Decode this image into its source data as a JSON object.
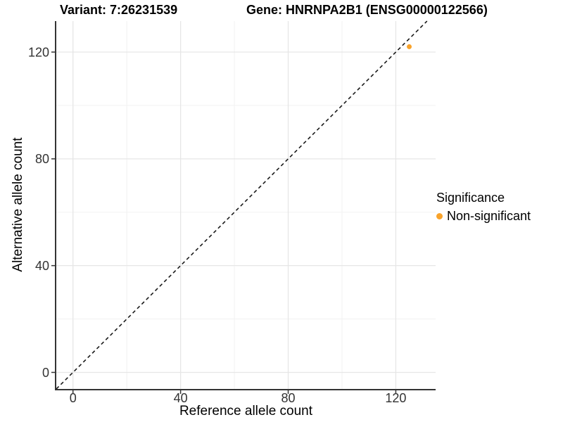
{
  "titles": {
    "variant": "Variant: 7:26231539",
    "gene": "Gene: HNRNPA2B1 (ENSG00000122566)"
  },
  "chart_data": {
    "type": "scatter",
    "xlabel": "Reference allele count",
    "ylabel": "Alternative allele count",
    "x_ticks": [
      0,
      40,
      80,
      120
    ],
    "y_ticks": [
      0,
      40,
      80,
      120
    ],
    "x_minor_ticks": [
      20,
      60,
      100
    ],
    "y_minor_ticks": [
      20,
      60,
      100
    ],
    "xlim": [
      -6.2,
      134.8
    ],
    "ylim": [
      -6.2,
      131.6
    ],
    "grid": "on",
    "identity_line": {
      "style": "dashed",
      "from": -6.2,
      "to": 131.6
    },
    "series": [
      {
        "name": "Non-significant",
        "color": "#F9A32B",
        "points": [
          {
            "x": 125,
            "y": 122
          }
        ]
      }
    ],
    "legend": {
      "title": "Significance",
      "position": "right",
      "entries": [
        {
          "label": "Non-significant",
          "color": "#F9A32B"
        }
      ]
    },
    "style": {
      "grid_major_color": "#e6e6e6",
      "grid_minor_color": "#f2f2f2",
      "axis_line_color": "#343434",
      "tick_label_color": "#333333",
      "dashed_line_color": "#1a1a1a"
    }
  }
}
